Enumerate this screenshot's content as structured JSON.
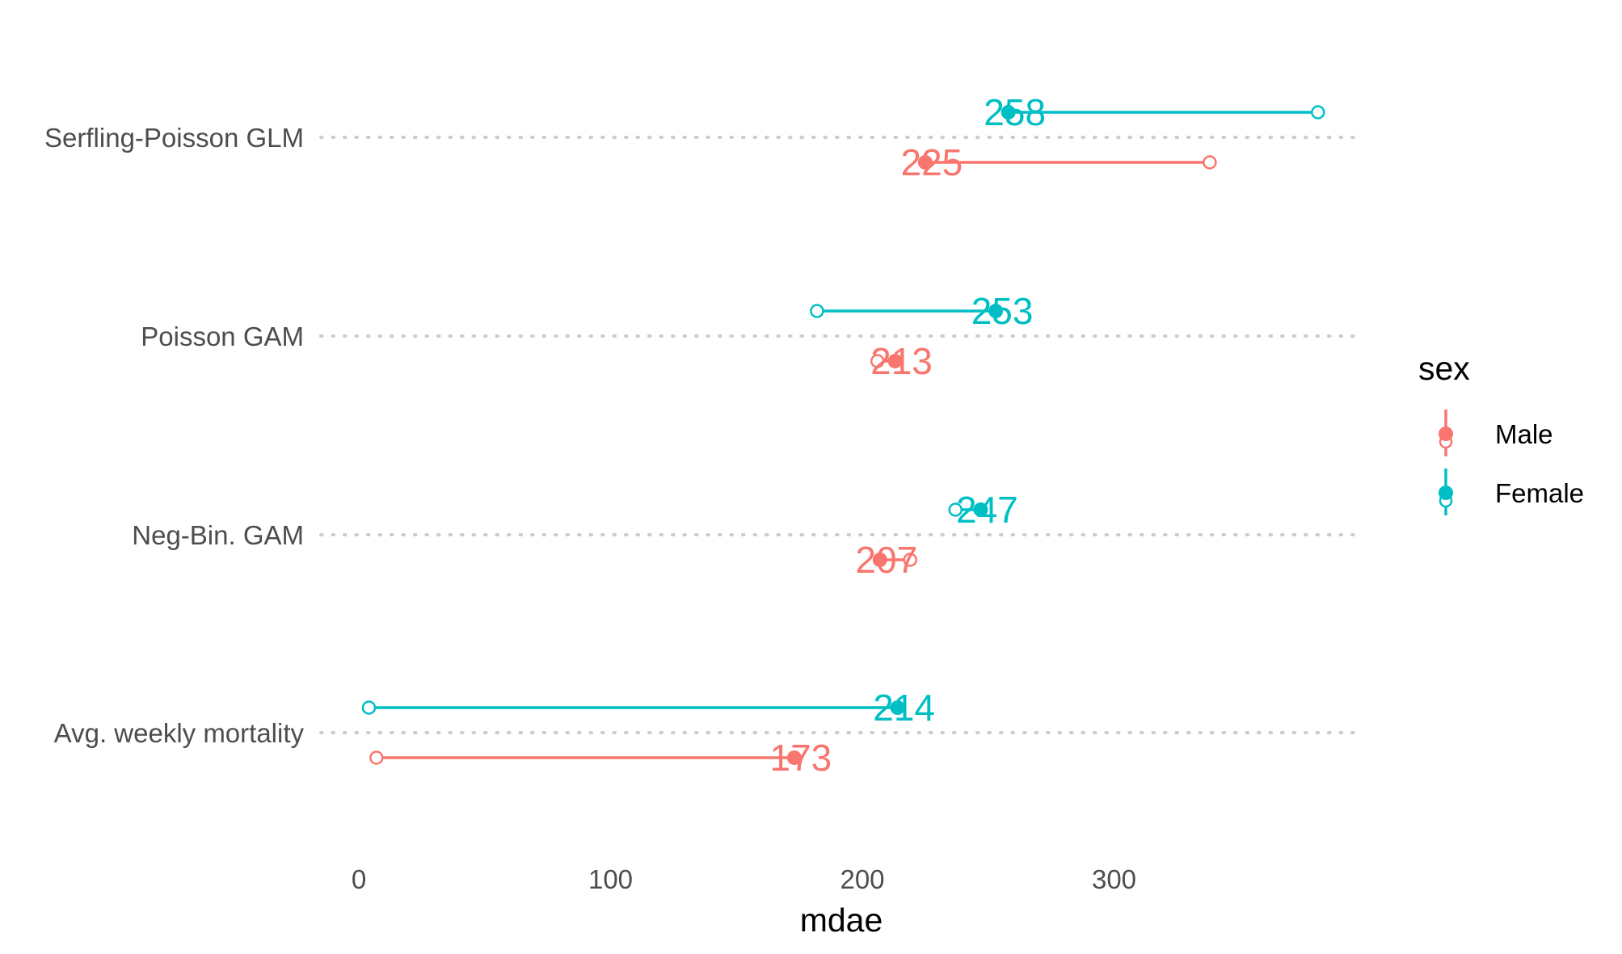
{
  "chart_data": {
    "type": "dot-range",
    "xlabel": "mdae",
    "ylabel": "",
    "xlim": [
      -10,
      400
    ],
    "x_ticks": [
      0,
      100,
      200,
      300
    ],
    "categories": [
      "Serfling-Poisson GLM",
      "Poisson GAM",
      "Neg-Bin. GAM",
      "Avg. weekly mortality"
    ],
    "legend": {
      "title": "sex",
      "position": "right"
    },
    "grid": "dotted-horizontal",
    "series": [
      {
        "name": "Male",
        "color": "#F8766D",
        "points": [
          {
            "category": "Serfling-Poisson GLM",
            "value": 225,
            "open_end": 338,
            "label": "225"
          },
          {
            "category": "Poisson GAM",
            "value": 213,
            "open_end": 206,
            "label": "213"
          },
          {
            "category": "Neg-Bin. GAM",
            "value": 207,
            "open_end": 219,
            "label": "207"
          },
          {
            "category": "Avg. weekly mortality",
            "value": 173,
            "open_end": 7,
            "label": "173"
          }
        ]
      },
      {
        "name": "Female",
        "color": "#00BFC4",
        "points": [
          {
            "category": "Serfling-Poisson GLM",
            "value": 258,
            "open_end": 381,
            "label": "258"
          },
          {
            "category": "Poisson GAM",
            "value": 253,
            "open_end": 182,
            "label": "253"
          },
          {
            "category": "Neg-Bin. GAM",
            "value": 247,
            "open_end": 237,
            "label": "247"
          },
          {
            "category": "Avg. weekly mortality",
            "value": 214,
            "open_end": 4,
            "label": "214"
          }
        ]
      }
    ]
  }
}
